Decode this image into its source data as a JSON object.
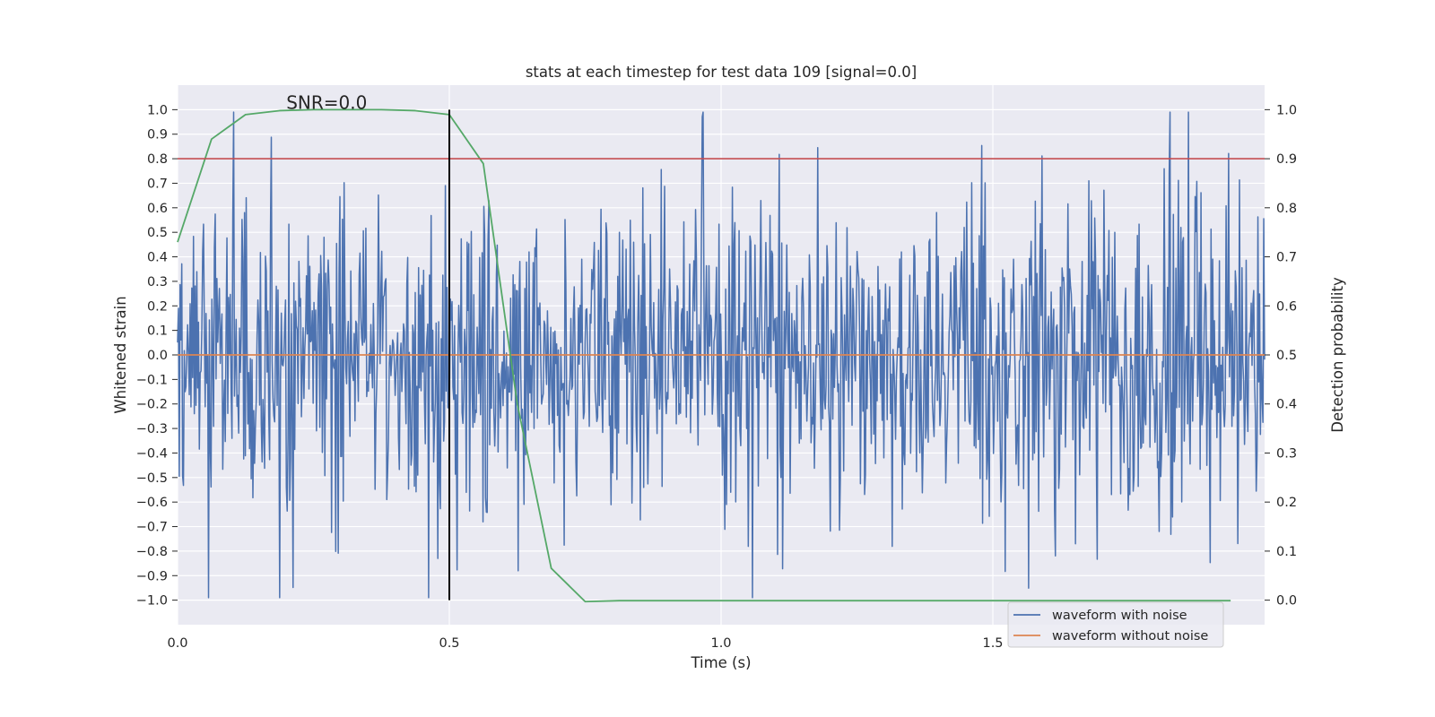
{
  "chart_data": {
    "type": "line",
    "title": "stats at each timestep for test data 109 [signal=0.0]",
    "xlabel": "Time (s)",
    "ylabel_left": "Whitened strain",
    "ylabel_right": "Detection probability",
    "xlim": [
      0.0,
      2.0
    ],
    "ylim_left": [
      -1.1,
      1.1
    ],
    "ylim_right": [
      -0.05,
      1.05
    ],
    "x_ticks": [
      0.0,
      0.5,
      1.0,
      1.5
    ],
    "x_tick_labels": [
      "0.0",
      "0.5",
      "1.0",
      "1.5"
    ],
    "y_left_ticks": [
      1.0,
      0.9,
      0.8,
      0.7,
      0.6,
      0.5,
      0.4,
      0.3,
      0.2,
      0.1,
      0.0,
      -0.1,
      -0.2,
      -0.3,
      -0.4,
      -0.5,
      -0.6,
      -0.7,
      -0.8,
      -0.9,
      -1.0
    ],
    "y_left_tick_labels": [
      "1.0",
      "0.9",
      "0.8",
      "0.7",
      "0.6",
      "0.5",
      "0.4",
      "0.3",
      "0.2",
      "0.1",
      "0.0",
      "−0.1",
      "−0.2",
      "−0.3",
      "−0.4",
      "−0.5",
      "−0.6",
      "−0.7",
      "−0.8",
      "−0.9",
      "−1.0"
    ],
    "y_right_ticks": [
      1.0,
      0.9,
      0.8,
      0.7,
      0.6,
      0.5,
      0.4,
      0.3,
      0.2,
      0.1,
      0.0
    ],
    "y_right_tick_labels": [
      "1.0",
      "0.9",
      "0.8",
      "0.7",
      "0.6",
      "0.5",
      "0.4",
      "0.3",
      "0.2",
      "0.1",
      "0.0"
    ],
    "grid": true,
    "series": [
      {
        "name": "waveform with noise",
        "axis": "left",
        "color": "#4c72b0",
        "kind": "noise",
        "x_range": [
          0.0,
          2.0
        ],
        "n_points": 1300,
        "seed": 109,
        "amplitude": 0.33,
        "clip": [
          -0.99,
          0.99
        ]
      },
      {
        "name": "waveform without noise",
        "axis": "left",
        "color": "#dd8452",
        "x": [
          0.0,
          2.0
        ],
        "y": [
          0.0,
          0.0
        ]
      },
      {
        "name": "detection probability",
        "axis": "right",
        "color": "#55a868",
        "x": [
          0.0,
          0.0625,
          0.125,
          0.1875,
          0.25,
          0.3125,
          0.375,
          0.4375,
          0.5,
          0.5625,
          0.625,
          0.6875,
          0.75,
          0.8125,
          0.875,
          0.9375,
          1.0,
          1.25,
          1.5,
          1.75,
          1.9375
        ],
        "y": [
          0.73,
          0.94,
          0.99,
          0.998,
          1.0,
          1.0,
          1.0,
          0.998,
          0.99,
          0.89,
          0.4,
          0.065,
          -0.003,
          -0.001,
          -0.001,
          -0.001,
          -0.001,
          -0.001,
          -0.001,
          -0.001,
          -0.001
        ]
      }
    ],
    "hlines": [
      {
        "name": "threshold",
        "axis": "right",
        "y": 0.9,
        "color": "#c44e52"
      }
    ],
    "vlines": [
      {
        "name": "marker",
        "x": 0.5,
        "ymin": -1.0,
        "ymax": 1.0,
        "axis": "left",
        "color": "#000000"
      }
    ],
    "annotations": [
      {
        "text": "SNR=0.0",
        "x": 0.2,
        "y": 1.0,
        "axis": "left"
      }
    ],
    "legend": {
      "position": "lower-right",
      "entries": [
        {
          "label": "waveform with noise",
          "color": "#4c72b0"
        },
        {
          "label": "waveform without noise",
          "color": "#dd8452"
        }
      ]
    },
    "style": {
      "plot_bg": "#eaeaf2",
      "grid_color": "#ffffff"
    }
  }
}
